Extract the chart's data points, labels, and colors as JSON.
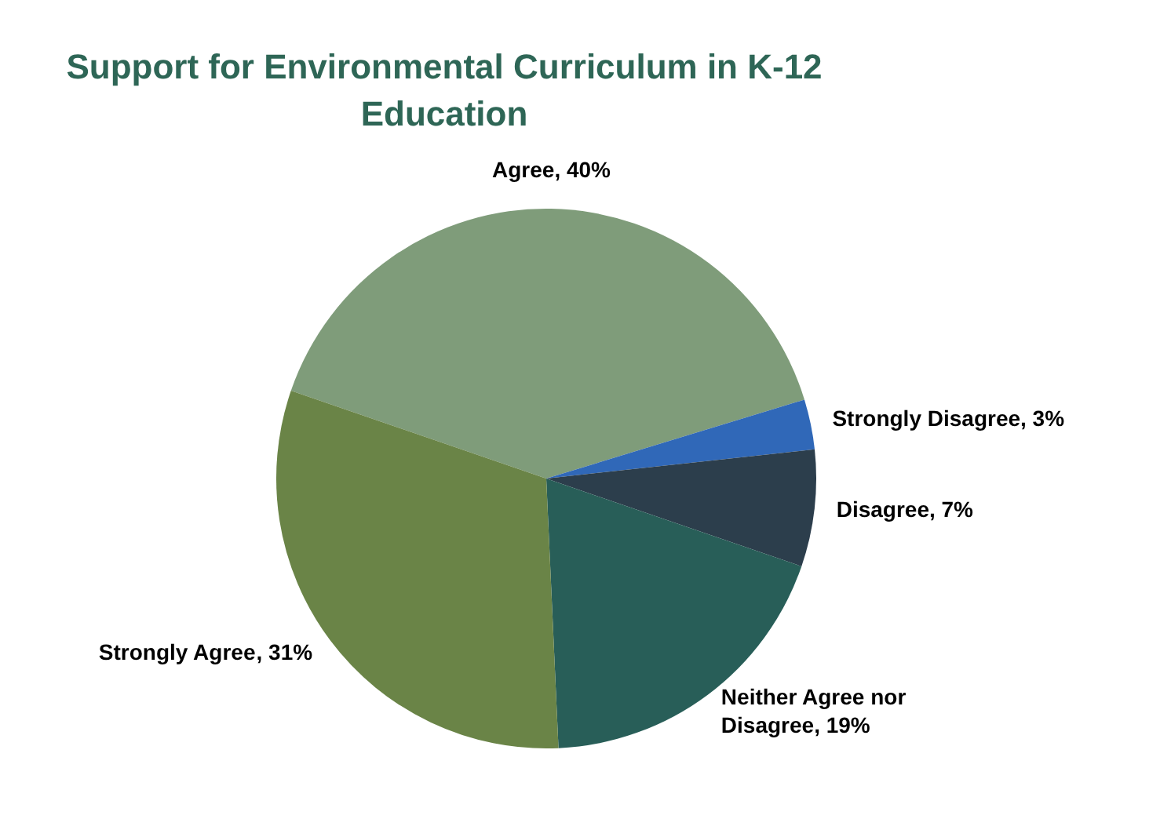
{
  "chart_data": {
    "type": "pie",
    "title": "Support for Environmental Curriculum in K-12 Education",
    "categories": [
      "Agree",
      "Strongly Disagree",
      "Disagree",
      "Neither Agree nor Disagree",
      "Strongly Agree"
    ],
    "values": [
      40,
      3,
      7,
      19,
      31
    ],
    "value_labels": [
      ", 40%",
      ", 3%",
      ", 7%",
      ", 19%",
      ", 31%"
    ],
    "colors": [
      "#7f9c7a",
      "#3068b8",
      "#2c3e4c",
      "#285e58",
      "#6a8447"
    ],
    "legend": false
  }
}
